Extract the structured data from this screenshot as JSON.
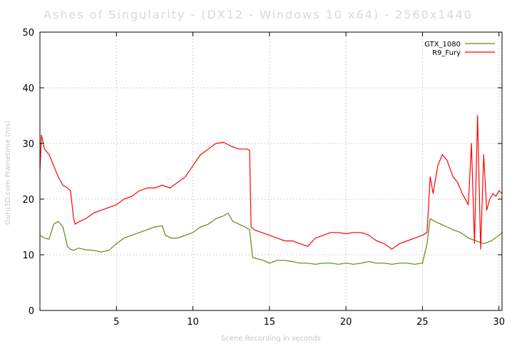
{
  "chart_data": {
    "type": "line",
    "title": "Ashes of Singularity - (DX12 - Windows 10 x64) - 2560x1440",
    "xlabel": "Scene Recording in seconds",
    "ylabel": "Guru3D.com Frametime (ms)",
    "xlim": [
      0,
      30.2
    ],
    "ylim": [
      0,
      50
    ],
    "x_ticks": [
      5,
      10,
      15,
      20,
      25,
      30
    ],
    "y_ticks": [
      0,
      10,
      20,
      30,
      40,
      50
    ],
    "grid": true,
    "legend_position": "top-right",
    "series": [
      {
        "name": "GTX_1080",
        "color": "#5a8a1a",
        "x": [
          0.0,
          0.3,
          0.6,
          0.9,
          1.2,
          1.5,
          1.8,
          2.0,
          2.2,
          2.5,
          3.0,
          3.5,
          4.0,
          4.5,
          5.0,
          5.5,
          6.0,
          6.5,
          7.0,
          7.5,
          8.0,
          8.2,
          8.6,
          9.0,
          9.5,
          10.0,
          10.5,
          11.0,
          11.5,
          12.0,
          12.3,
          12.6,
          13.0,
          13.4,
          13.7,
          13.9,
          14.2,
          14.6,
          15.0,
          15.5,
          16.0,
          16.5,
          17.0,
          17.5,
          18.0,
          18.5,
          19.0,
          19.5,
          20.0,
          20.5,
          21.0,
          21.5,
          22.0,
          22.5,
          23.0,
          23.5,
          24.0,
          24.5,
          25.0,
          25.3,
          25.5,
          25.8,
          26.2,
          26.6,
          27.0,
          27.5,
          28.0,
          28.5,
          29.0,
          29.5,
          30.0,
          30.2
        ],
        "values": [
          13.5,
          13.0,
          12.8,
          15.5,
          16.0,
          15.0,
          11.5,
          11.0,
          10.8,
          11.2,
          10.9,
          10.8,
          10.5,
          10.8,
          12.0,
          13.0,
          13.5,
          14.0,
          14.5,
          15.0,
          15.2,
          13.5,
          13.0,
          13.0,
          13.5,
          14.0,
          15.0,
          15.5,
          16.5,
          17.0,
          17.5,
          16.0,
          15.5,
          15.0,
          14.5,
          9.5,
          9.3,
          9.0,
          8.5,
          9.0,
          9.0,
          8.8,
          8.5,
          8.5,
          8.3,
          8.5,
          8.5,
          8.3,
          8.5,
          8.3,
          8.5,
          8.8,
          8.5,
          8.5,
          8.3,
          8.5,
          8.5,
          8.3,
          8.5,
          12.0,
          16.5,
          16.0,
          15.5,
          15.0,
          14.5,
          14.0,
          13.0,
          12.5,
          12.0,
          12.5,
          13.5,
          14.0
        ]
      },
      {
        "name": "R9_Fury",
        "color": "#ff0000",
        "x": [
          0.0,
          0.1,
          0.3,
          0.6,
          0.9,
          1.2,
          1.5,
          1.8,
          2.0,
          2.2,
          2.3,
          2.6,
          3.0,
          3.5,
          4.0,
          4.5,
          5.0,
          5.5,
          6.0,
          6.5,
          7.0,
          7.5,
          8.0,
          8.5,
          9.0,
          9.5,
          10.0,
          10.5,
          11.0,
          11.5,
          12.0,
          12.5,
          13.0,
          13.5,
          13.7,
          13.8,
          14.0,
          14.5,
          15.0,
          15.5,
          16.0,
          16.5,
          17.0,
          17.5,
          18.0,
          18.5,
          19.0,
          19.5,
          20.0,
          20.5,
          21.0,
          21.5,
          22.0,
          22.5,
          23.0,
          23.5,
          24.0,
          24.5,
          25.0,
          25.3,
          25.5,
          25.7,
          26.0,
          26.3,
          26.6,
          27.0,
          27.3,
          27.6,
          28.0,
          28.2,
          28.4,
          28.6,
          28.8,
          29.0,
          29.2,
          29.4,
          29.6,
          29.8,
          30.0,
          30.2
        ],
        "values": [
          25.0,
          31.5,
          29.0,
          28.0,
          26.0,
          24.0,
          22.5,
          22.0,
          21.5,
          16.5,
          15.5,
          16.0,
          16.5,
          17.5,
          18.0,
          18.5,
          19.0,
          20.0,
          20.5,
          21.5,
          22.0,
          22.0,
          22.5,
          22.0,
          23.0,
          24.0,
          26.0,
          28.0,
          29.0,
          30.0,
          30.2,
          29.5,
          29.0,
          29.0,
          28.8,
          15.0,
          14.5,
          14.0,
          13.5,
          13.0,
          12.5,
          12.5,
          12.0,
          11.5,
          13.0,
          13.5,
          14.0,
          14.0,
          13.8,
          14.0,
          14.0,
          13.5,
          12.5,
          12.0,
          11.0,
          12.0,
          12.5,
          13.0,
          13.5,
          14.0,
          24.0,
          21.0,
          26.0,
          28.0,
          27.0,
          24.0,
          23.0,
          21.0,
          19.0,
          30.0,
          12.0,
          35.0,
          11.0,
          28.0,
          18.0,
          20.0,
          21.0,
          20.5,
          21.5,
          21.0
        ]
      }
    ]
  }
}
